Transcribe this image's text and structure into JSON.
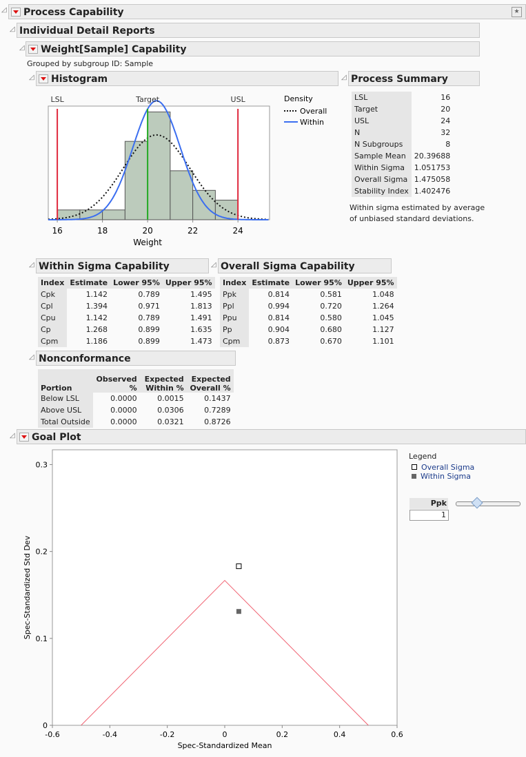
{
  "headers": {
    "process_capability": "Process Capability",
    "individual": "Individual Detail Reports",
    "weight": "Weight[Sample] Capability",
    "histogram": "Histogram",
    "summary": "Process Summary",
    "within": "Within Sigma Capability",
    "overall": "Overall Sigma Capability",
    "nonconf": "Nonconformance",
    "goal": "Goal Plot"
  },
  "grouped_text": "Grouped by subgroup ID: Sample",
  "histogram": {
    "type": "bar",
    "xlabel": "Weight",
    "xticks": [
      "16",
      "18",
      "20",
      "22",
      "24"
    ],
    "xlim": [
      15.6,
      25.4
    ],
    "bins": [
      [
        16,
        17,
        1
      ],
      [
        17,
        18,
        1
      ],
      [
        18,
        19,
        1
      ],
      [
        19,
        20,
        8
      ],
      [
        20,
        21,
        11
      ],
      [
        21,
        22,
        5
      ],
      [
        22,
        23,
        3
      ],
      [
        23,
        24,
        2
      ]
    ],
    "refs": {
      "lsl": {
        "label": "LSL",
        "value": 16
      },
      "target": {
        "label": "Target",
        "value": 20
      },
      "usl": {
        "label": "USL",
        "value": 24
      }
    },
    "legend_title": "Density",
    "legend": [
      "Overall",
      "Within"
    ],
    "mean": 20.39688,
    "sigma_within": 1.051753,
    "sigma_overall": 1.475058,
    "colors": {
      "bar": "#bccbbc",
      "spec": "#e0283c",
      "target": "#22aa22",
      "within": "#3b6ef0"
    }
  },
  "summary": {
    "rows": [
      [
        "LSL",
        "16"
      ],
      [
        "Target",
        "20"
      ],
      [
        "USL",
        "24"
      ],
      [
        "N",
        "32"
      ],
      [
        "N Subgroups",
        "8"
      ],
      [
        "Sample Mean",
        "20.39688"
      ],
      [
        "Within Sigma",
        "1.051753"
      ],
      [
        "Overall Sigma",
        "1.475058"
      ],
      [
        "Stability Index",
        "1.402476"
      ]
    ],
    "note1": "Within sigma estimated by average",
    "note2": "of unbiased standard deviations."
  },
  "within_table": {
    "cols": [
      "Index",
      "Estimate",
      "Lower 95%",
      "Upper 95%"
    ],
    "rows": [
      [
        "Cpk",
        "1.142",
        "0.789",
        "1.495"
      ],
      [
        "Cpl",
        "1.394",
        "0.971",
        "1.813"
      ],
      [
        "Cpu",
        "1.142",
        "0.789",
        "1.491"
      ],
      [
        "Cp",
        "1.268",
        "0.899",
        "1.635"
      ],
      [
        "Cpm",
        "1.186",
        "0.899",
        "1.473"
      ]
    ]
  },
  "overall_table": {
    "cols": [
      "Index",
      "Estimate",
      "Lower 95%",
      "Upper 95%"
    ],
    "rows": [
      [
        "Ppk",
        "0.814",
        "0.581",
        "1.048"
      ],
      [
        "Ppl",
        "0.994",
        "0.720",
        "1.264"
      ],
      [
        "Ppu",
        "0.814",
        "0.580",
        "1.045"
      ],
      [
        "Pp",
        "0.904",
        "0.680",
        "1.127"
      ],
      [
        "Cpm",
        "0.873",
        "0.670",
        "1.101"
      ]
    ]
  },
  "nonconf": {
    "cols": [
      "Portion",
      "Observed %",
      "Expected Within %",
      "Expected Overall %"
    ],
    "rows": [
      [
        "Below LSL",
        "0.0000",
        "0.0015",
        "0.1437"
      ],
      [
        "Above USL",
        "0.0000",
        "0.0306",
        "0.7289"
      ],
      [
        "Total Outside",
        "0.0000",
        "0.0321",
        "0.8726"
      ]
    ]
  },
  "chart_data": {
    "type": "scatter",
    "xlabel": "Spec-Standardized Mean",
    "ylabel": "Spec-Standardized Std Dev",
    "xlim": [
      -0.6,
      0.6
    ],
    "ylim": [
      0,
      0.317
    ],
    "xticks": [
      "-0.6",
      "-0.4",
      "-0.2",
      "0",
      "0.2",
      "0.4",
      "0.6"
    ],
    "yticks": [
      "0",
      "0.1",
      "0.2",
      "0.3"
    ],
    "series": [
      {
        "name": "Overall Sigma",
        "x": [
          0.049
        ],
        "y": [
          0.183
        ]
      },
      {
        "name": "Within Sigma",
        "x": [
          0.049
        ],
        "y": [
          0.131
        ]
      }
    ],
    "ppk_boundary": [
      [
        -0.5,
        0
      ],
      [
        0,
        0.1667
      ],
      [
        0.5,
        0
      ]
    ],
    "legend_title": "Legend",
    "boundary_color": "#f06070"
  },
  "ppk": {
    "label": "Ppk",
    "value": "1",
    "slider_fraction": 0.33
  }
}
